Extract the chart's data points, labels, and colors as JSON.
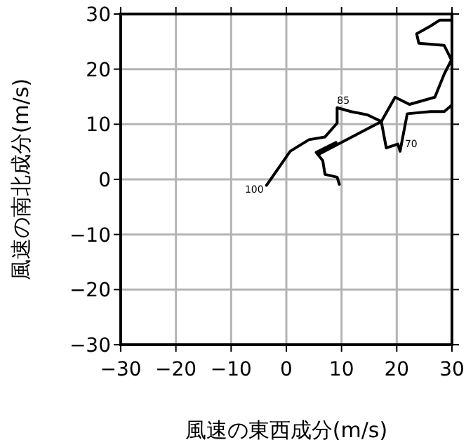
{
  "chart_data": {
    "type": "line",
    "xlabel": "風速の東西成分(m/s)",
    "ylabel": "風速の南北成分(m/s)",
    "xlim": [
      -30,
      30
    ],
    "ylim": [
      -30,
      30
    ],
    "xticks": [
      {
        "value": -30,
        "label": "−30"
      },
      {
        "value": -20,
        "label": "−20"
      },
      {
        "value": -10,
        "label": "−10"
      },
      0,
      10,
      20,
      30
    ],
    "yticks": [
      {
        "value": -30,
        "label": "−30"
      },
      {
        "value": -20,
        "label": "−20"
      },
      {
        "value": -10,
        "label": "−10"
      },
      0,
      10,
      20,
      30
    ],
    "grid": true,
    "series": [
      {
        "color": "#000000",
        "x": [
          -3.6,
          0.7,
          4.1,
          7.0,
          9.2,
          9.2,
          11.7,
          14.7,
          17.2,
          18.1,
          20.2,
          20.6,
          21.9,
          26.1,
          28.6,
          29.9
        ],
        "values": [
          -1.1,
          5.1,
          7.2,
          7.7,
          10.2,
          13.0,
          12.3,
          11.7,
          10.5,
          5.7,
          6.4,
          5.1,
          11.9,
          12.3,
          12.3,
          13.4
        ]
      },
      {
        "color": "#000000",
        "x": [
          17.2,
          19.7,
          22.3,
          26.9,
          28.6,
          29.9,
          28.6,
          24.0,
          23.6,
          26.1,
          27.8,
          29.9
        ],
        "values": [
          10.5,
          14.9,
          13.6,
          14.9,
          19.1,
          21.7,
          24.3,
          24.7,
          26.4,
          27.8,
          28.9,
          28.9
        ]
      },
      {
        "color": "#000000",
        "x": [
          17.2,
          5.8,
          9.0,
          5.4,
          6.6,
          7.0,
          9.2,
          9.6
        ],
        "values": [
          10.5,
          4.5,
          6.7,
          4.9,
          3.4,
          0.9,
          0.4,
          -0.9
        ]
      }
    ],
    "annotations": [
      {
        "text": "100",
        "x": -3.6,
        "y": -1.1
      },
      {
        "text": "85",
        "x": 9.2,
        "y": 13.0
      },
      {
        "text": "70",
        "x": 20.2,
        "y": 6.4
      }
    ]
  }
}
